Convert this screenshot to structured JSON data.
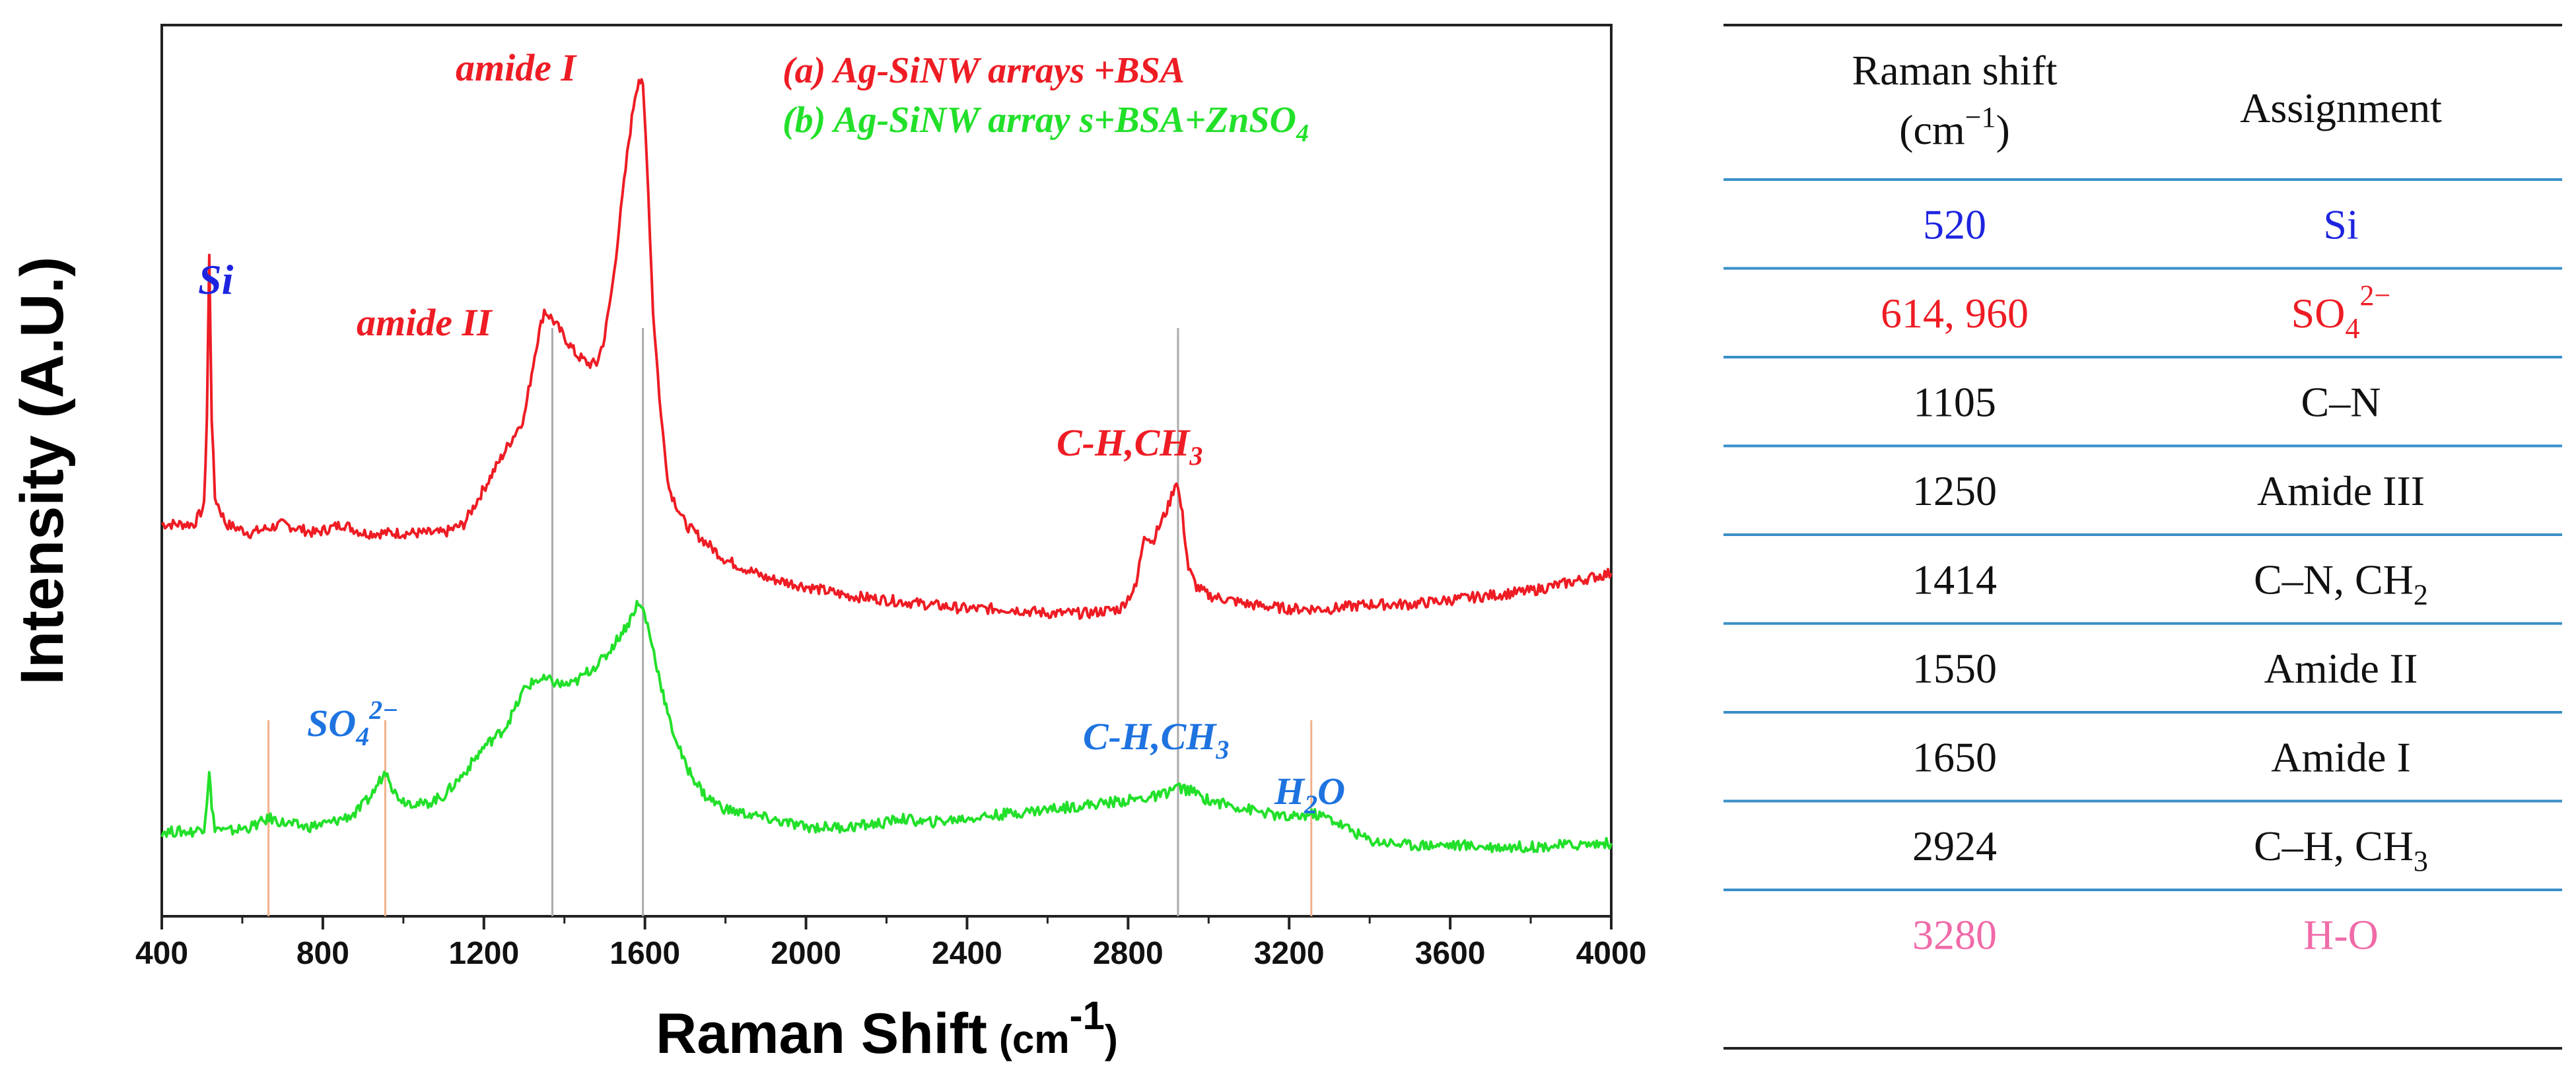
{
  "chart_data": {
    "type": "line",
    "title": "",
    "xlabel": "Raman Shift",
    "xlabel_unit": "(cm",
    "xlabel_unit_sup": "-1",
    "xlabel_unit_close": ")",
    "ylabel": "Intensity (A.U.)",
    "xlim": [
      400,
      4000
    ],
    "x_ticks": [
      "400",
      "800",
      "1200",
      "1600",
      "2000",
      "2400",
      "2800",
      "3200",
      "3600",
      "4000"
    ],
    "y_ticks": [],
    "ylim": [
      0,
      1
    ],
    "legend": {
      "position": "top-right",
      "entries": [
        {
          "prefix": "(a) Ag-SiNW arrays +BSA",
          "suffix": "",
          "sub": "",
          "color": "#ee1c24"
        },
        {
          "prefix": "(b) Ag-SiNW array s+BSA+ZnSO",
          "suffix": "",
          "sub": "4",
          "color": "#22e02a"
        }
      ]
    },
    "series": [
      {
        "name": "(a) Ag-SiNW arrays +BSA",
        "color": "#ee1c24",
        "x": [
          400,
          480,
          505,
          512,
          518,
          524,
          532,
          560,
          620,
          700,
          780,
          850,
          900,
          950,
          1000,
          1050,
          1100,
          1150,
          1200,
          1250,
          1300,
          1330,
          1350,
          1370,
          1400,
          1430,
          1460,
          1480,
          1500,
          1520,
          1540,
          1560,
          1575,
          1585,
          1595,
          1605,
          1620,
          1640,
          1660,
          1700,
          1750,
          1800,
          1900,
          2000,
          2100,
          2200,
          2300,
          2400,
          2500,
          2600,
          2700,
          2780,
          2820,
          2840,
          2860,
          2880,
          2900,
          2920,
          2935,
          2950,
          2970,
          3000,
          3100,
          3200,
          3300,
          3400,
          3500,
          3600,
          3700,
          3800,
          3900,
          4000
        ],
        "y": [
          0.44,
          0.44,
          0.46,
          0.56,
          0.74,
          0.56,
          0.47,
          0.44,
          0.43,
          0.44,
          0.43,
          0.44,
          0.43,
          0.43,
          0.43,
          0.43,
          0.43,
          0.44,
          0.48,
          0.52,
          0.56,
          0.64,
          0.68,
          0.67,
          0.65,
          0.63,
          0.62,
          0.62,
          0.65,
          0.71,
          0.79,
          0.87,
          0.92,
          0.94,
          0.93,
          0.85,
          0.68,
          0.56,
          0.48,
          0.44,
          0.42,
          0.4,
          0.38,
          0.37,
          0.36,
          0.355,
          0.35,
          0.345,
          0.345,
          0.34,
          0.34,
          0.345,
          0.37,
          0.43,
          0.42,
          0.44,
          0.46,
          0.49,
          0.45,
          0.39,
          0.37,
          0.36,
          0.35,
          0.345,
          0.345,
          0.35,
          0.35,
          0.355,
          0.36,
          0.365,
          0.375,
          0.385
        ]
      },
      {
        "name": "(b) Ag-SiNW array s+BSA+ZnSO4",
        "color": "#22e02a",
        "x": [
          400,
          480,
          505,
          512,
          518,
          524,
          532,
          560,
          620,
          670,
          700,
          760,
          820,
          880,
          920,
          945,
          960,
          975,
          1000,
          1050,
          1100,
          1150,
          1200,
          1250,
          1280,
          1300,
          1330,
          1360,
          1390,
          1420,
          1460,
          1500,
          1530,
          1560,
          1580,
          1595,
          1610,
          1630,
          1660,
          1700,
          1750,
          1800,
          1900,
          2000,
          2100,
          2200,
          2230,
          2300,
          2400,
          2500,
          2600,
          2700,
          2800,
          2880,
          2920,
          2960,
          3000,
          3100,
          3200,
          3260,
          3300,
          3400,
          3500,
          3600,
          3700,
          3800,
          3900,
          4000
        ],
        "y": [
          0.095,
          0.095,
          0.1,
          0.13,
          0.165,
          0.12,
          0.1,
          0.095,
          0.1,
          0.11,
          0.105,
          0.1,
          0.105,
          0.115,
          0.135,
          0.155,
          0.165,
          0.14,
          0.13,
          0.125,
          0.135,
          0.16,
          0.19,
          0.21,
          0.235,
          0.255,
          0.265,
          0.265,
          0.26,
          0.26,
          0.275,
          0.29,
          0.31,
          0.33,
          0.35,
          0.345,
          0.32,
          0.28,
          0.22,
          0.17,
          0.135,
          0.12,
          0.11,
          0.1,
          0.1,
          0.105,
          0.11,
          0.105,
          0.11,
          0.115,
          0.12,
          0.125,
          0.13,
          0.135,
          0.145,
          0.14,
          0.13,
          0.12,
          0.11,
          0.115,
          0.11,
          0.085,
          0.08,
          0.08,
          0.078,
          0.078,
          0.08,
          0.082
        ]
      }
    ],
    "reference_lines": [
      {
        "x": 1370,
        "color": "#aaaaaa"
      },
      {
        "x": 1595,
        "color": "#aaaaaa"
      },
      {
        "x": 2924,
        "color": "#aaaaaa"
      },
      {
        "x": 665,
        "color": "#f2b08a"
      },
      {
        "x": 955,
        "color": "#f2b08a"
      },
      {
        "x": 3255,
        "color": "#f2b08a"
      }
    ],
    "annotations": [
      {
        "id": "si",
        "text": "Si",
        "sub": "",
        "sup": "",
        "tail": "",
        "color": "#1d24e0"
      },
      {
        "id": "amide-ii",
        "text": "amide II",
        "sub": "",
        "sup": "",
        "tail": "",
        "color": "#ee1c24"
      },
      {
        "id": "amide-i",
        "text": "amide I",
        "sub": "",
        "sup": "",
        "tail": "",
        "color": "#ee1c24"
      },
      {
        "id": "ch-red",
        "text": "C-H,CH",
        "sub": "3",
        "sup": "",
        "tail": "",
        "color": "#ee1c24"
      },
      {
        "id": "so4",
        "text": "SO",
        "sub": "4",
        "sup": "2−",
        "tail": "",
        "color": "#1e73e0"
      },
      {
        "id": "ch-blue",
        "text": "C-H,CH",
        "sub": "3",
        "sup": "",
        "tail": "",
        "color": "#1e73e0"
      },
      {
        "id": "h2o",
        "text": "H",
        "sub": "2",
        "sup": "",
        "tail": "O",
        "color": "#1e73e0"
      }
    ]
  },
  "table": {
    "header": {
      "shift_line1": "Raman shift",
      "shift_line2_prefix": "(cm",
      "shift_line2_sup": "−1",
      "shift_line2_suffix": ")",
      "assignment": "Assignment"
    },
    "rows": [
      {
        "shift": "520",
        "base": "Si",
        "sub": "",
        "sup": "",
        "color": "#1d24e0"
      },
      {
        "shift": "614, 960",
        "base": "SO",
        "sub": "4",
        "sup": "2−",
        "color": "#ee1c24"
      },
      {
        "shift": "1105",
        "base": "C–N",
        "sub": "",
        "sup": "",
        "color": "#111111"
      },
      {
        "shift": "1250",
        "base": "Amide III",
        "sub": "",
        "sup": "",
        "color": "#111111"
      },
      {
        "shift": "1414",
        "base": "C–N, CH",
        "sub": "2",
        "sup": "",
        "color": "#111111"
      },
      {
        "shift": "1550",
        "base": "Amide II",
        "sub": "",
        "sup": "",
        "color": "#111111"
      },
      {
        "shift": "1650",
        "base": "Amide I",
        "sub": "",
        "sup": "",
        "color": "#111111"
      },
      {
        "shift": "2924",
        "base": "C–H, CH",
        "sub": "3",
        "sup": "",
        "color": "#111111"
      },
      {
        "shift": "3280",
        "base": "H-O",
        "sub": "",
        "sup": "",
        "color": "#f06aa8"
      }
    ]
  }
}
